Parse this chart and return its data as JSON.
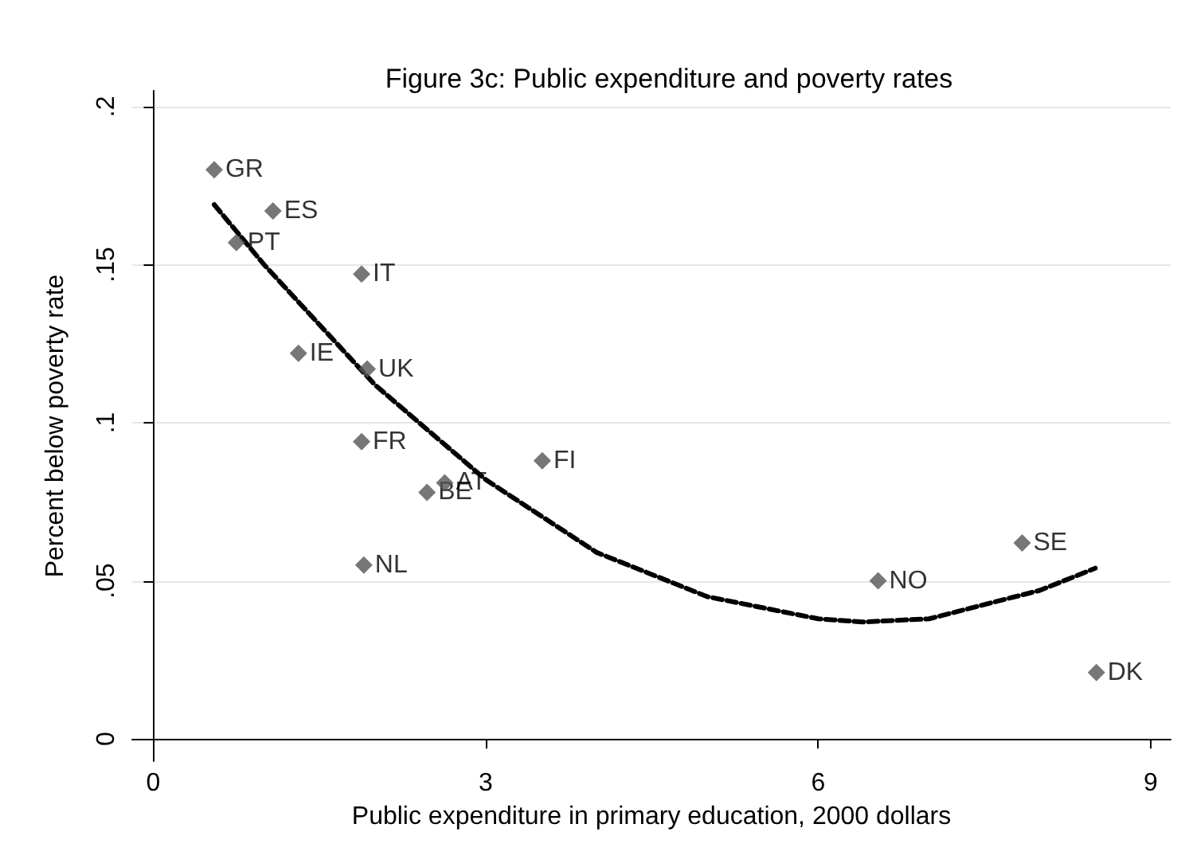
{
  "chart_data": {
    "type": "scatter",
    "title": "Figure 3c: Public expenditure and poverty rates",
    "xlabel": "Public expenditure in primary education, 2000 dollars",
    "ylabel": "Percent below poverty rate",
    "series": [
      {
        "type": "scatter",
        "color": "#555555",
        "marker": "diamond",
        "x": [
          0.55,
          1.08,
          0.75,
          1.88,
          1.31,
          1.93,
          1.88,
          3.51,
          2.63,
          2.47,
          1.9,
          6.54,
          7.84,
          8.51
        ],
        "values": [
          0.18,
          0.167,
          0.157,
          0.147,
          0.122,
          0.117,
          0.094,
          0.088,
          0.081,
          0.078,
          0.055,
          0.05,
          0.062,
          0.021
        ]
      },
      {
        "type": "line",
        "color": "#000000",
        "line_style": "dashed",
        "marker": "none",
        "x": [
          0.55,
          1,
          2,
          3,
          4,
          5,
          6,
          6.4,
          7,
          8,
          8.5
        ],
        "values": [
          0.169,
          0.15,
          0.112,
          0.082,
          0.059,
          0.045,
          0.038,
          0.037,
          0.038,
          0.047,
          0.054
        ]
      }
    ],
    "annotations": [
      {
        "text": "GR",
        "x": 0.55,
        "y": 0.18
      },
      {
        "text": "ES",
        "x": 1.08,
        "y": 0.167
      },
      {
        "text": "PT",
        "x": 0.75,
        "y": 0.157
      },
      {
        "text": "IT",
        "x": 1.88,
        "y": 0.147
      },
      {
        "text": "IE",
        "x": 1.31,
        "y": 0.122
      },
      {
        "text": "UK",
        "x": 1.93,
        "y": 0.117
      },
      {
        "text": "FR",
        "x": 1.88,
        "y": 0.094
      },
      {
        "text": "FI",
        "x": 3.51,
        "y": 0.088
      },
      {
        "text": "AT",
        "x": 2.63,
        "y": 0.081
      },
      {
        "text": "BE",
        "x": 2.47,
        "y": 0.078
      },
      {
        "text": "NL",
        "x": 1.9,
        "y": 0.055
      },
      {
        "text": "NO",
        "x": 6.54,
        "y": 0.05
      },
      {
        "text": "SE",
        "x": 7.84,
        "y": 0.062
      },
      {
        "text": "DK",
        "x": 8.51,
        "y": 0.021
      }
    ],
    "xlim": [
      -0.19,
      9.18
    ],
    "xticks": [
      0,
      3,
      6,
      9
    ],
    "ylim": [
      -0.007,
      0.205
    ],
    "yticks": [
      0,
      {
        "value": 0.05,
        "label": ".05"
      },
      {
        "value": 0.1,
        "label": ".1"
      },
      {
        "value": 0.15,
        "label": ".15"
      },
      {
        "value": 0.2,
        "label": ".2"
      }
    ],
    "grid": "y"
  }
}
